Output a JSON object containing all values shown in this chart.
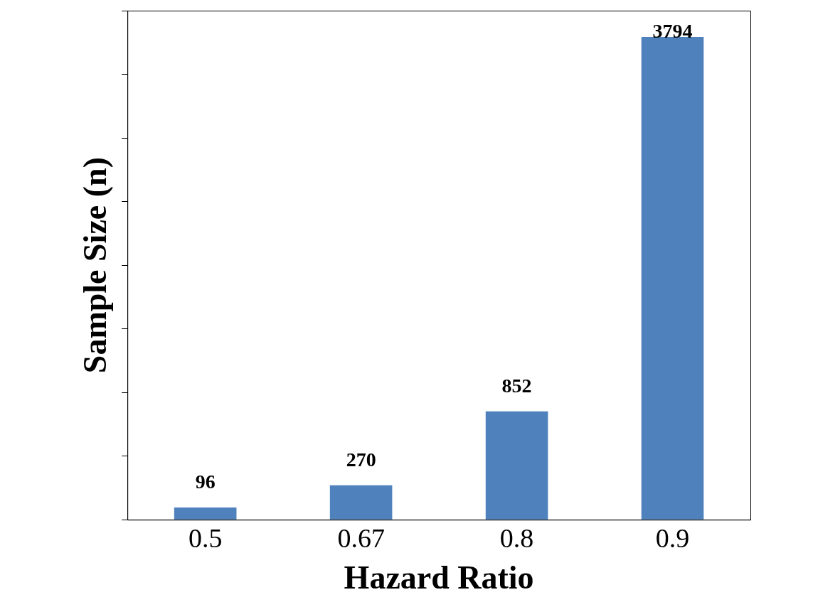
{
  "chart_data": {
    "type": "bar",
    "xlabel": "Hazard Ratio",
    "ylabel": "Sample Size (n)",
    "categories": [
      "0.5",
      "0.67",
      "0.8",
      "0.9"
    ],
    "values": [
      96,
      270,
      852,
      3794
    ],
    "color": "#4f81bd",
    "ylim": [
      0,
      4000
    ],
    "yticks": [
      {
        "value": 0,
        "label": null
      },
      {
        "value": 500,
        "label": null
      },
      {
        "value": 1000,
        "label": null
      },
      {
        "value": 1500,
        "label": null
      },
      {
        "value": 2000,
        "label": null
      },
      {
        "value": 2500,
        "label": null
      },
      {
        "value": 3000,
        "label": null
      },
      {
        "value": 3500,
        "label": null
      },
      {
        "value": 4000,
        "label": null
      }
    ],
    "tick_labels": "x",
    "data_labels": true,
    "grid": false,
    "legend": false
  }
}
